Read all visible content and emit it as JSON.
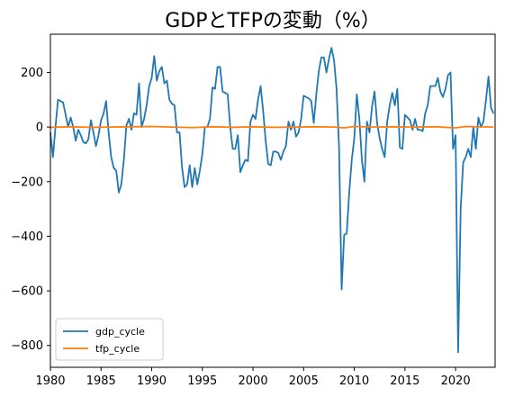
{
  "chart_data": {
    "type": "line",
    "title": "GDPとTFPの変動（%）",
    "xlabel": "",
    "ylabel": "",
    "xlim": [
      1980,
      2023.9
    ],
    "ylim": [
      -880,
      340
    ],
    "xticks": [
      1980,
      1985,
      1990,
      1995,
      2000,
      2005,
      2010,
      2015,
      2020
    ],
    "yticks": [
      200,
      0,
      -200,
      -400,
      -600,
      -800
    ],
    "grid": false,
    "legend_position": "lower-left",
    "series": [
      {
        "name": "gdp_cycle",
        "color": "#1f77b4",
        "points": [
          [
            1980.0,
            -20
          ],
          [
            1980.25,
            -110
          ],
          [
            1980.5,
            0
          ],
          [
            1980.75,
            100
          ],
          [
            1981.0,
            95
          ],
          [
            1981.25,
            90
          ],
          [
            1981.5,
            45
          ],
          [
            1981.75,
            0
          ],
          [
            1982.0,
            35
          ],
          [
            1982.25,
            0
          ],
          [
            1982.5,
            -50
          ],
          [
            1982.75,
            -10
          ],
          [
            1983.0,
            -30
          ],
          [
            1983.25,
            -55
          ],
          [
            1983.5,
            -60
          ],
          [
            1983.75,
            -45
          ],
          [
            1984.0,
            25
          ],
          [
            1984.25,
            -20
          ],
          [
            1984.5,
            -70
          ],
          [
            1984.75,
            -30
          ],
          [
            1985.0,
            25
          ],
          [
            1985.25,
            50
          ],
          [
            1985.5,
            95
          ],
          [
            1985.75,
            -20
          ],
          [
            1986.0,
            -110
          ],
          [
            1986.25,
            -150
          ],
          [
            1986.5,
            -160
          ],
          [
            1986.75,
            -240
          ],
          [
            1987.0,
            -210
          ],
          [
            1987.25,
            -120
          ],
          [
            1987.5,
            5
          ],
          [
            1987.75,
            30
          ],
          [
            1988.0,
            -10
          ],
          [
            1988.25,
            50
          ],
          [
            1988.5,
            45
          ],
          [
            1988.75,
            160
          ],
          [
            1989.0,
            0
          ],
          [
            1989.25,
            30
          ],
          [
            1989.5,
            80
          ],
          [
            1989.75,
            150
          ],
          [
            1990.0,
            180
          ],
          [
            1990.25,
            260
          ],
          [
            1990.5,
            170
          ],
          [
            1990.75,
            205
          ],
          [
            1991.0,
            220
          ],
          [
            1991.25,
            160
          ],
          [
            1991.5,
            170
          ],
          [
            1991.75,
            100
          ],
          [
            1992.0,
            85
          ],
          [
            1992.25,
            80
          ],
          [
            1992.5,
            -20
          ],
          [
            1992.75,
            -20
          ],
          [
            1993.0,
            -150
          ],
          [
            1993.25,
            -220
          ],
          [
            1993.5,
            -210
          ],
          [
            1993.75,
            -140
          ],
          [
            1994.0,
            -220
          ],
          [
            1994.25,
            -150
          ],
          [
            1994.5,
            -210
          ],
          [
            1994.75,
            -160
          ],
          [
            1995.0,
            -100
          ],
          [
            1995.25,
            0
          ],
          [
            1995.5,
            0
          ],
          [
            1995.75,
            30
          ],
          [
            1996.0,
            145
          ],
          [
            1996.25,
            140
          ],
          [
            1996.5,
            220
          ],
          [
            1996.75,
            220
          ],
          [
            1997.0,
            130
          ],
          [
            1997.25,
            125
          ],
          [
            1997.5,
            120
          ],
          [
            1997.75,
            0
          ],
          [
            1998.0,
            -80
          ],
          [
            1998.25,
            -80
          ],
          [
            1998.5,
            -30
          ],
          [
            1998.75,
            -165
          ],
          [
            1999.0,
            -140
          ],
          [
            1999.25,
            -120
          ],
          [
            1999.5,
            -125
          ],
          [
            1999.75,
            20
          ],
          [
            2000.0,
            45
          ],
          [
            2000.25,
            30
          ],
          [
            2000.5,
            100
          ],
          [
            2000.75,
            150
          ],
          [
            2001.0,
            60
          ],
          [
            2001.25,
            -50
          ],
          [
            2001.5,
            -135
          ],
          [
            2001.75,
            -140
          ],
          [
            2002.0,
            -90
          ],
          [
            2002.25,
            -90
          ],
          [
            2002.5,
            -95
          ],
          [
            2002.75,
            -120
          ],
          [
            2003.0,
            -90
          ],
          [
            2003.25,
            -70
          ],
          [
            2003.5,
            20
          ],
          [
            2003.75,
            -10
          ],
          [
            2004.0,
            20
          ],
          [
            2004.25,
            -35
          ],
          [
            2004.5,
            -20
          ],
          [
            2004.75,
            30
          ],
          [
            2005.0,
            115
          ],
          [
            2005.25,
            110
          ],
          [
            2005.5,
            105
          ],
          [
            2005.75,
            95
          ],
          [
            2006.0,
            15
          ],
          [
            2006.25,
            120
          ],
          [
            2006.5,
            205
          ],
          [
            2006.75,
            255
          ],
          [
            2007.0,
            255
          ],
          [
            2007.25,
            200
          ],
          [
            2007.5,
            250
          ],
          [
            2007.75,
            290
          ],
          [
            2008.0,
            245
          ],
          [
            2008.25,
            140
          ],
          [
            2008.5,
            -80
          ],
          [
            2008.75,
            -595
          ],
          [
            2009.0,
            -395
          ],
          [
            2009.25,
            -390
          ],
          [
            2009.5,
            -240
          ],
          [
            2009.75,
            -120
          ],
          [
            2010.0,
            -40
          ],
          [
            2010.25,
            120
          ],
          [
            2010.5,
            30
          ],
          [
            2010.75,
            -120
          ],
          [
            2011.0,
            -200
          ],
          [
            2011.25,
            20
          ],
          [
            2011.5,
            -20
          ],
          [
            2011.75,
            75
          ],
          [
            2012.0,
            130
          ],
          [
            2012.25,
            15
          ],
          [
            2012.5,
            -40
          ],
          [
            2012.75,
            -80
          ],
          [
            2013.0,
            -110
          ],
          [
            2013.25,
            20
          ],
          [
            2013.5,
            80
          ],
          [
            2013.75,
            125
          ],
          [
            2014.0,
            80
          ],
          [
            2014.25,
            140
          ],
          [
            2014.5,
            -75
          ],
          [
            2014.75,
            -80
          ],
          [
            2015.0,
            45
          ],
          [
            2015.25,
            35
          ],
          [
            2015.5,
            25
          ],
          [
            2015.75,
            -10
          ],
          [
            2016.0,
            30
          ],
          [
            2016.25,
            -10
          ],
          [
            2016.5,
            -10
          ],
          [
            2016.75,
            -15
          ],
          [
            2017.0,
            50
          ],
          [
            2017.25,
            80
          ],
          [
            2017.5,
            150
          ],
          [
            2017.75,
            150
          ],
          [
            2018.0,
            150
          ],
          [
            2018.25,
            180
          ],
          [
            2018.5,
            130
          ],
          [
            2018.75,
            110
          ],
          [
            2019.0,
            140
          ],
          [
            2019.25,
            190
          ],
          [
            2019.5,
            200
          ],
          [
            2019.75,
            -80
          ],
          [
            2020.0,
            -30
          ],
          [
            2020.25,
            -825
          ],
          [
            2020.5,
            -300
          ],
          [
            2020.75,
            -130
          ],
          [
            2021.0,
            -110
          ],
          [
            2021.25,
            -80
          ],
          [
            2021.5,
            -110
          ],
          [
            2021.75,
            0
          ],
          [
            2022.0,
            -80
          ],
          [
            2022.25,
            35
          ],
          [
            2022.5,
            0
          ],
          [
            2022.75,
            20
          ],
          [
            2023.0,
            100
          ],
          [
            2023.25,
            185
          ],
          [
            2023.5,
            70
          ],
          [
            2023.75,
            50
          ]
        ]
      },
      {
        "name": "tfp_cycle",
        "color": "#ff7f0e",
        "points": [
          [
            1980.0,
            -1
          ],
          [
            1982.0,
            1
          ],
          [
            1984.0,
            -1
          ],
          [
            1986.0,
            0
          ],
          [
            1988.0,
            1
          ],
          [
            1990.0,
            2
          ],
          [
            1992.0,
            0
          ],
          [
            1994.0,
            -2
          ],
          [
            1996.0,
            1
          ],
          [
            1998.0,
            -1
          ],
          [
            2000.0,
            1
          ],
          [
            2002.0,
            -1
          ],
          [
            2004.0,
            0
          ],
          [
            2006.0,
            1
          ],
          [
            2008.0,
            0
          ],
          [
            2009.0,
            -3
          ],
          [
            2010.0,
            2
          ],
          [
            2012.0,
            0
          ],
          [
            2014.0,
            1
          ],
          [
            2016.0,
            0
          ],
          [
            2018.0,
            1
          ],
          [
            2020.0,
            -3
          ],
          [
            2021.0,
            2
          ],
          [
            2023.75,
            0
          ]
        ]
      }
    ]
  }
}
